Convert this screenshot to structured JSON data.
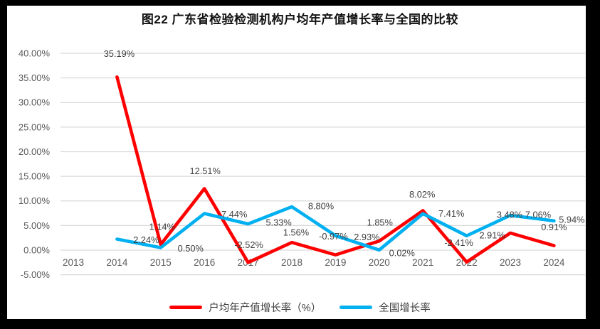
{
  "title": "图22  广东省检验检测机构户均年产值增长率与全国的比较",
  "chart_data": {
    "type": "line",
    "categories": [
      "2013",
      "2014",
      "2015",
      "2016",
      "2017",
      "2018",
      "2019",
      "2020",
      "2021",
      "2022",
      "2023",
      "2024"
    ],
    "series": [
      {
        "name": "户均年产值增长率（%）",
        "color": "#FF0000",
        "values": [
          null,
          35.19,
          1.14,
          12.51,
          -2.52,
          1.56,
          -0.97,
          1.85,
          8.02,
          -2.41,
          3.48,
          0.91
        ]
      },
      {
        "name": "全国增长率",
        "color": "#00B0F0",
        "values": [
          null,
          2.24,
          0.5,
          7.44,
          5.33,
          8.8,
          2.93,
          0.02,
          7.41,
          2.91,
          7.06,
          5.94
        ]
      }
    ],
    "title": "图22  广东省检验检测机构户均年产值增长率与全国的比较",
    "xlabel": "",
    "ylabel": "",
    "ylim": [
      -5,
      40
    ],
    "y_tick_step": 5,
    "y_tick_labels": [
      "40.00%",
      "35.00%",
      "30.00%",
      "25.00%",
      "20.00%",
      "15.00%",
      "10.00%",
      "5.00%",
      "0.00%",
      "-5.00%"
    ],
    "value_label_format": "0.00%",
    "grid": true,
    "legend_position": "bottom"
  },
  "colors": {
    "frame": "#000000",
    "background": "#ffffff",
    "gridline": "#d9d9d9",
    "axis_text": "#595959",
    "data_label_text": "#404040",
    "title_text": "#111111"
  }
}
